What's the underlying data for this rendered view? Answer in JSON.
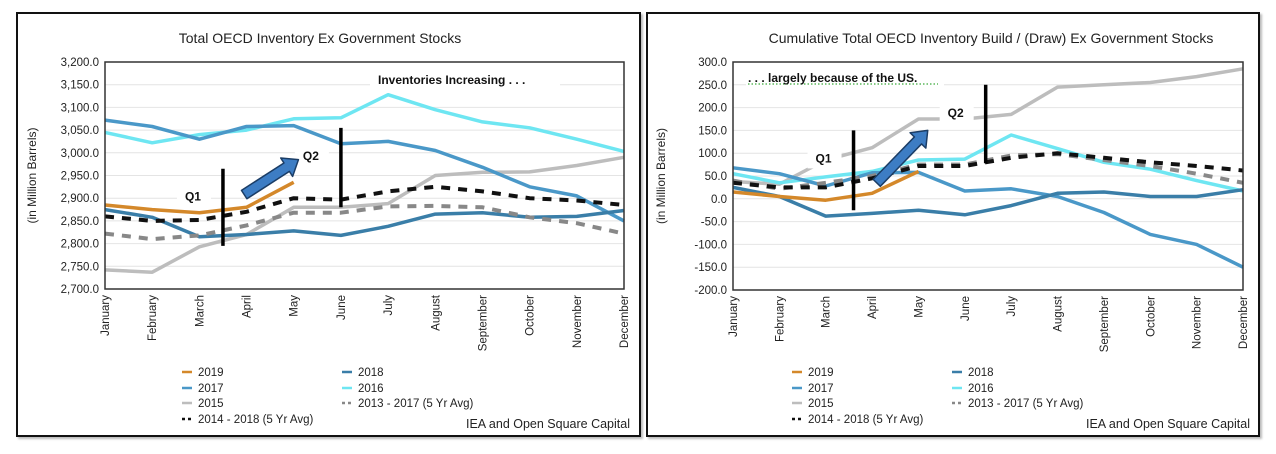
{
  "chart_data": [
    {
      "type": "line",
      "title": "Total OECD Inventory Ex Government Stocks",
      "xlabel": "",
      "ylabel": "(in Million Barrels)",
      "ylim": [
        2700,
        3200
      ],
      "ytick_step": 50,
      "yticks": [
        "2,700.0",
        "2,750.0",
        "2,800.0",
        "2,850.0",
        "2,900.0",
        "2,950.0",
        "3,000.0",
        "3,050.0",
        "3,100.0",
        "3,150.0",
        "3,200.0"
      ],
      "categories": [
        "January",
        "February",
        "March",
        "April",
        "May",
        "June",
        "July",
        "August",
        "September",
        "October",
        "November",
        "December"
      ],
      "grid": true,
      "legend_position": "bottom",
      "series": [
        {
          "name": "2019",
          "color": "#d4882a",
          "dash": false,
          "values": [
            2885,
            2875,
            2868,
            2880,
            2935
          ]
        },
        {
          "name": "2018",
          "color": "#3a7ea8",
          "dash": false,
          "values": [
            2875,
            2858,
            2815,
            2820,
            2828,
            2818,
            2838,
            2865,
            2868,
            2858,
            2860,
            2873
          ]
        },
        {
          "name": "2017",
          "color": "#4a98c8",
          "dash": false,
          "values": [
            3072,
            3058,
            3030,
            3058,
            3060,
            3020,
            3025,
            3005,
            2968,
            2925,
            2905,
            2850
          ]
        },
        {
          "name": "2016",
          "color": "#6ee6f2",
          "dash": false,
          "values": [
            3045,
            3022,
            3040,
            3050,
            3075,
            3077,
            3128,
            3095,
            3068,
            3055,
            3030,
            3003
          ]
        },
        {
          "name": "2015",
          "color": "#bdbdbd",
          "dash": false,
          "values": [
            2742,
            2737,
            2793,
            2820,
            2880,
            2880,
            2888,
            2950,
            2957,
            2958,
            2972,
            2990
          ]
        },
        {
          "name": "2013 - 2017 (5 Yr Avg)",
          "color": "#888888",
          "dash": true,
          "values": [
            2822,
            2810,
            2818,
            2840,
            2868,
            2868,
            2882,
            2883,
            2880,
            2858,
            2845,
            2822
          ]
        },
        {
          "name": "2014 - 2018 (5 Yr Avg)",
          "color": "#111111",
          "dash": true,
          "values": [
            2860,
            2850,
            2852,
            2870,
            2900,
            2897,
            2915,
            2925,
            2915,
            2900,
            2895,
            2885
          ]
        }
      ],
      "annotations": {
        "headline": "Inventories Increasing . . .",
        "q1": "Q1",
        "q2": "Q2",
        "q1_bar": {
          "x_month": 3.5,
          "from": 2795,
          "to": 2965
        },
        "q2_bar": {
          "x_month": 6.0,
          "from": 2880,
          "to": 3055
        },
        "arrow": {
          "from_month": 3.95,
          "from_value": 2908,
          "to_month": 5.1,
          "to_value": 2985
        }
      },
      "source": "IEA and Open Square Capital"
    },
    {
      "type": "line",
      "title": "Cumulative Total OECD Inventory Build / (Draw) Ex Government Stocks",
      "xlabel": "",
      "ylabel": "(in Million Barrels)",
      "ylim": [
        -200,
        300
      ],
      "ytick_step": 50,
      "yticks": [
        "-200.0",
        "-150.0",
        "-100.0",
        "-50.0",
        "0.0",
        "50.0",
        "100.0",
        "150.0",
        "200.0",
        "250.0",
        "300.0"
      ],
      "categories": [
        "January",
        "February",
        "March",
        "April",
        "May",
        "June",
        "July",
        "August",
        "September",
        "October",
        "November",
        "December"
      ],
      "grid": true,
      "legend_position": "bottom",
      "series": [
        {
          "name": "2019",
          "color": "#d4882a",
          "dash": false,
          "values": [
            15,
            5,
            -3,
            12,
            60
          ]
        },
        {
          "name": "2018",
          "color": "#3a7ea8",
          "dash": false,
          "values": [
            25,
            5,
            -38,
            -32,
            -25,
            -35,
            -15,
            12,
            15,
            5,
            5,
            20
          ]
        },
        {
          "name": "2017",
          "color": "#4a98c8",
          "dash": false,
          "values": [
            68,
            55,
            28,
            57,
            58,
            17,
            22,
            5,
            -30,
            -78,
            -100,
            -150
          ]
        },
        {
          "name": "2016",
          "color": "#6ee6f2",
          "dash": false,
          "values": [
            55,
            35,
            48,
            60,
            85,
            87,
            140,
            110,
            80,
            65,
            40,
            17
          ]
        },
        {
          "name": "2015",
          "color": "#bdbdbd",
          "dash": false,
          "values": [
            38,
            32,
            85,
            112,
            175,
            175,
            185,
            245,
            250,
            255,
            268,
            285
          ]
        },
        {
          "name": "2013 - 2017 (5 Yr Avg)",
          "color": "#888888",
          "dash": true,
          "values": [
            40,
            22,
            35,
            50,
            75,
            75,
            95,
            98,
            85,
            72,
            55,
            35
          ]
        },
        {
          "name": "2014 - 2018 (5 Yr Avg)",
          "color": "#111111",
          "dash": true,
          "values": [
            35,
            25,
            25,
            45,
            72,
            72,
            90,
            100,
            90,
            80,
            72,
            62
          ]
        }
      ],
      "annotations": {
        "headline": ". . . largely because of the US.",
        "q1": "Q1",
        "q2": "Q2",
        "q1_bar": {
          "x_month": 3.6,
          "from": -25,
          "to": 150
        },
        "q2_bar": {
          "x_month": 6.45,
          "from": 78,
          "to": 250
        },
        "arrow": {
          "from_month": 4.1,
          "from_value": 35,
          "to_month": 5.2,
          "to_value": 150
        }
      },
      "source": "IEA and Open Square Capital"
    }
  ],
  "legend_order": [
    "2019",
    "2018",
    "2017",
    "2016",
    "2015",
    "2013 - 2017 (5 Yr Avg)",
    "2014 - 2018 (5 Yr Avg)"
  ]
}
